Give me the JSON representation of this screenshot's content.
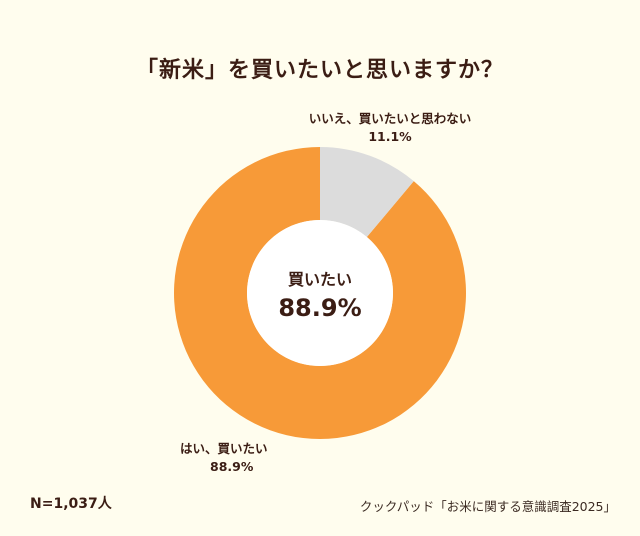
{
  "title": "「新米」を買いたいと思いますか？",
  "chart_data": {
    "type": "pie",
    "donut": true,
    "categories": [
      "はい、買いたい",
      "いいえ、買いたいと思わない"
    ],
    "values": [
      88.9,
      11.1
    ],
    "value_labels": [
      "88.9%",
      "11.1%"
    ],
    "colors": [
      "#f79a38",
      "#dcdcdc"
    ],
    "center_label": "買いたい",
    "center_value": "88.9%"
  },
  "footer": {
    "sample_size": "N=1,037人",
    "source": "クックパッド「お米に関する意識調査2025」"
  }
}
